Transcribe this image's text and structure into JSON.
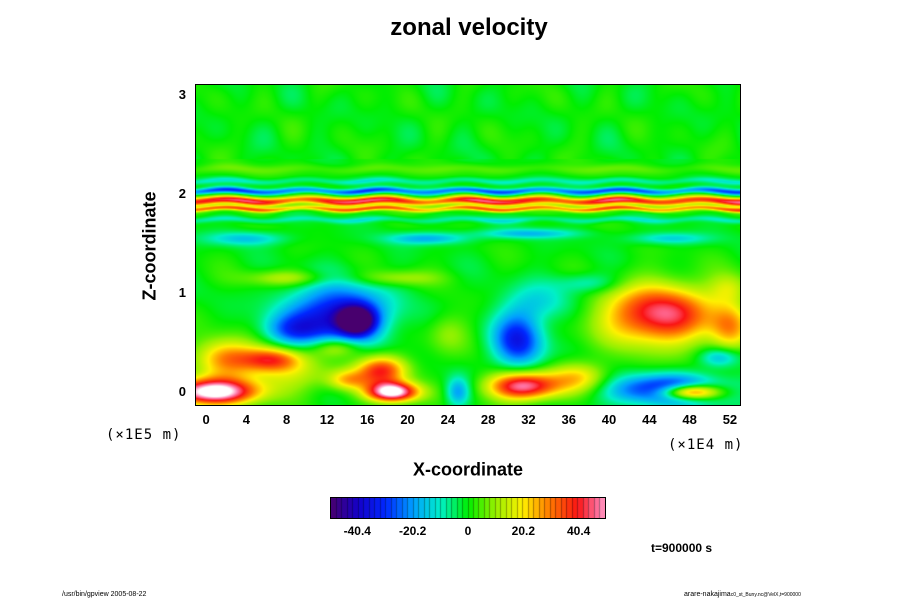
{
  "chart_data": {
    "type": "heatmap",
    "title": "zonal velocity",
    "xlabel": "X-coordinate",
    "ylabel": "Z-coordinate",
    "x_scale_note": "(×1E4 m)",
    "y_scale_note": "(×1E5 m)",
    "xlim": [
      -1,
      53
    ],
    "ylim": [
      -0.13,
      3.1
    ],
    "x_ticks": [
      "0",
      "4",
      "8",
      "12",
      "16",
      "20",
      "24",
      "28",
      "32",
      "36",
      "40",
      "44",
      "48",
      "52"
    ],
    "y_ticks": [
      "0",
      "1",
      "2",
      "3"
    ],
    "colorbar": {
      "min": -50,
      "max": 50,
      "tick_labels": [
        "-40.4",
        "-20.2",
        "0",
        "20.2",
        "40.4"
      ],
      "tick_values": [
        -40.4,
        -20.2,
        0,
        20.2,
        40.4
      ],
      "colormap": "rainbow: purple-blue-cyan-green-yellow-red-pink"
    },
    "features": [
      {
        "x": 0.5,
        "z": 0.0,
        "value": 60,
        "rx": 4.5,
        "rz": 0.13
      },
      {
        "x": 2.0,
        "z": 0.35,
        "value": 28,
        "rx": 3.0,
        "rz": 0.2
      },
      {
        "x": 6.5,
        "z": 0.33,
        "value": 32,
        "rx": 3.0,
        "rz": 0.12
      },
      {
        "x": 8.0,
        "z": 0.18,
        "value": 14,
        "rx": 5.0,
        "rz": 0.18
      },
      {
        "x": 13.0,
        "z": 0.78,
        "value": -38,
        "rx": 5.0,
        "rz": 0.3
      },
      {
        "x": 15.0,
        "z": 0.72,
        "value": -45,
        "rx": 1.8,
        "rz": 0.14
      },
      {
        "x": 8.5,
        "z": 0.62,
        "value": -18,
        "rx": 3.0,
        "rz": 0.15
      },
      {
        "x": 17.5,
        "z": 0.22,
        "value": 38,
        "rx": 2.5,
        "rz": 0.15
      },
      {
        "x": 18.5,
        "z": 0.0,
        "value": 60,
        "rx": 2.5,
        "rz": 0.1
      },
      {
        "x": 14.0,
        "z": 0.12,
        "value": 20,
        "rx": 2.0,
        "rz": 0.1
      },
      {
        "x": 13.0,
        "z": 0.45,
        "value": 18,
        "rx": 2.5,
        "rz": 0.1
      },
      {
        "x": 24.0,
        "z": 0.6,
        "value": 10,
        "rx": 2.0,
        "rz": 0.2
      },
      {
        "x": 25.0,
        "z": 0.0,
        "value": -20,
        "rx": 1.2,
        "rz": 0.15
      },
      {
        "x": 31.0,
        "z": 0.52,
        "value": -33,
        "rx": 2.5,
        "rz": 0.28
      },
      {
        "x": 33.0,
        "z": 0.9,
        "value": -12,
        "rx": 3.5,
        "rz": 0.2
      },
      {
        "x": 31.5,
        "z": 0.06,
        "value": 50,
        "rx": 3.5,
        "rz": 0.14
      },
      {
        "x": 37.0,
        "z": 0.15,
        "value": 20,
        "rx": 3.0,
        "rz": 0.15
      },
      {
        "x": 45.0,
        "z": 0.78,
        "value": 46,
        "rx": 5.5,
        "rz": 0.3
      },
      {
        "x": 46.0,
        "z": 0.02,
        "value": -42,
        "rx": 5.5,
        "rz": 0.15
      },
      {
        "x": 48.0,
        "z": 0.0,
        "value": 60,
        "rx": 3.0,
        "rz": 0.08
      },
      {
        "x": 51.0,
        "z": 0.35,
        "value": -18,
        "rx": 2.0,
        "rz": 0.1
      },
      {
        "x": 52.0,
        "z": 0.65,
        "value": 22,
        "rx": 2.0,
        "rz": 0.25
      },
      {
        "x": 52.0,
        "z": 1.05,
        "value": 12,
        "rx": 2.0,
        "rz": 0.15
      },
      {
        "x": 8.0,
        "z": 1.15,
        "value": 14,
        "rx": 4.0,
        "rz": 0.08
      },
      {
        "x": 19.0,
        "z": 1.15,
        "value": 12,
        "rx": 4.0,
        "rz": 0.08
      },
      {
        "x": 38.0,
        "z": 1.1,
        "value": -12,
        "rx": 3.0,
        "rz": 0.1
      },
      {
        "x": 4.0,
        "z": 1.55,
        "value": -15,
        "rx": 4.0,
        "rz": 0.07
      },
      {
        "x": 22.0,
        "z": 1.55,
        "value": -18,
        "rx": 4.0,
        "rz": 0.06
      },
      {
        "x": 32.0,
        "z": 1.6,
        "value": -16,
        "rx": 5.0,
        "rz": 0.05
      },
      {
        "x": 46.0,
        "z": 1.55,
        "value": -14,
        "rx": 4.0,
        "rz": 0.06
      }
    ],
    "bands": [
      {
        "z": 1.93,
        "value": 46,
        "rz": 0.04
      },
      {
        "z": 1.85,
        "value": 34,
        "rz": 0.025
      },
      {
        "z": 2.03,
        "value": -28,
        "rz": 0.03
      },
      {
        "z": 2.13,
        "value": -10,
        "rz": 0.03
      },
      {
        "z": 1.74,
        "value": -10,
        "rz": 0.03
      },
      {
        "z": 2.25,
        "value": 6,
        "rz": 0.05
      }
    ]
  },
  "annotations": {
    "time": "t=900000 s",
    "footer_left": "/usr/bin/gpview 2005-08-22",
    "footer_right_main": "arare-nakajima",
    "footer_right_small": "c0_st_Buny.nc@VelX,t=900000"
  }
}
